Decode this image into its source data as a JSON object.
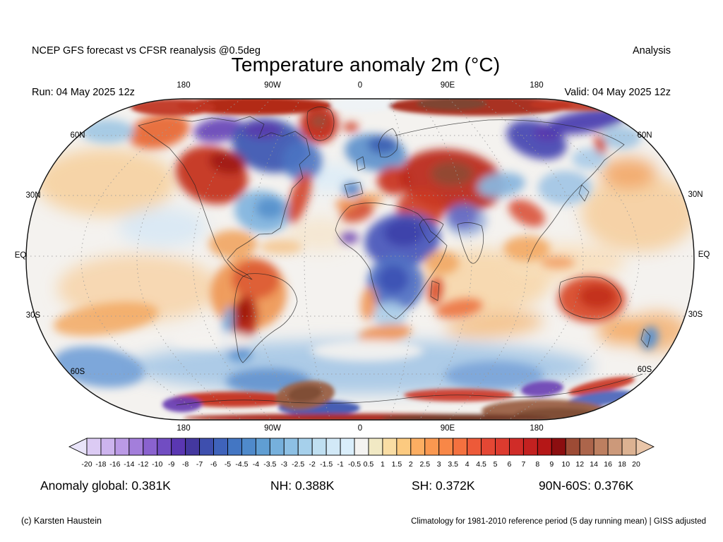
{
  "header": {
    "left_line1": "NCEP GFS forecast vs CFSR reanalysis @0.5deg",
    "left_line2": "Run: 04 May 2025 12z",
    "right_line1": "Analysis",
    "right_line2": "Valid: 04 May 2025 12z"
  },
  "title": "Temperature anomaly 2m (°C)",
  "map": {
    "lon_labels": [
      "180",
      "90W",
      "0",
      "90E",
      "180"
    ],
    "lat_labels": [
      "60N",
      "30N",
      "EQ",
      "30S",
      "60S"
    ],
    "outline_color": "#111111",
    "base_color": "#f4f2ef",
    "grid_color": "#9a9a9a",
    "coast_color": "#222222",
    "coastlines": [
      "M196,178 L236,168 L272,172 L300,167 L332,172 L354,165 L374,176 L366,196 L384,188 L400,193 L418,186 L434,197 L439,219 L424,233 L429,252 L414,267 L404,297 L397,323 L385,331 L367,332 L351,343 L335,353 L322,368 L335,381 L350,389 L357,396 L344,391 L330,383 L318,368 L306,345 L296,318 L286,290 L276,262 L260,234 L240,210 L216,193 Z",
      "M436,158 Q452,146 468,156 Q478,172 468,192 Q456,204 444,196 Q432,176 436,158 Z",
      "M352,388 Q374,386 394,394 Q418,404 421,427 Q416,449 397,463 Q377,475 362,492 Q352,506 344,514 Q337,507 336,491 Q330,461 332,431 Q334,403 344,392 Z",
      "M496,292 Q522,284 548,290 Q572,292 592,303 Q603,313 610,328 Q622,337 633,348 Q628,367 616,383 Q604,401 592,418 Q578,438 561,452 Q546,445 537,428 Q528,406 524,382 Q513,362 498,352 Q481,342 475,326 Q479,306 496,292 Z",
      "M488,262 L510,258 L514,274 L493,280 Z",
      "M505,227 L514,222 L517,238 L507,242 Z",
      "M536,206 Q540,188 556,182 Q566,192 562,212 Q551,226 539,222 Z",
      "M560,192 Q622,176 692,170 Q762,168 826,182 Q862,190 884,205 Q870,217 856,227 Q843,245 828,258 Q812,272 798,291 Q784,314 766,335 Q754,352 748,371",
      "M648,318 Q664,312 682,320 Q689,343 678,366 Q670,380 663,367 Q652,343 648,318 Z",
      "M598,312 Q614,307 628,318 Q621,334 608,344 Q598,331 594,318 Z",
      "M794,400 Q820,388 852,394 Q876,404 880,426 Q873,446 848,452 Q818,452 800,438 Q788,420 794,400 Z",
      "M912,466 L921,476 L917,492 L908,481 Z",
      "M824,262 L834,272 L828,285 L820,274 Z",
      "M612,398 L622,402 L620,426 L610,420 Z",
      "M250,574 Q330,562 410,570 Q490,574 560,566 Q630,556 700,562 Q770,566 840,550 Q880,541 910,530"
    ],
    "field_blobs": {
      "soft": [
        [
          150,
          258,
          100,
          48,
          0,
          "#f6d0a0",
          0.9
        ],
        [
          905,
          302,
          82,
          55,
          0,
          "#f6cc9a",
          0.85
        ],
        [
          196,
          408,
          115,
          48,
          0,
          "#f7d4a8",
          0.85
        ],
        [
          686,
          398,
          95,
          45,
          0,
          "#f7d6aa",
          0.9
        ],
        [
          800,
          372,
          85,
          26,
          0,
          "#f8ddb8",
          0.85
        ],
        [
          452,
          332,
          48,
          24,
          0,
          "#f8ddb8",
          0.5
        ],
        [
          468,
          252,
          42,
          20,
          0,
          "#dcecf7",
          0.9
        ],
        [
          230,
          322,
          62,
          28,
          0,
          "#d8e8f4",
          0.9
        ],
        [
          510,
          520,
          330,
          38,
          0,
          "#a6c8e6",
          0.92
        ],
        [
          930,
          470,
          45,
          28,
          0,
          "#f3b273",
          0.85
        ],
        [
          878,
          468,
          32,
          20,
          0,
          "#f3ab66",
          0.9
        ],
        [
          700,
          460,
          70,
          18,
          -5,
          "#f4ba7c",
          0.8
        ],
        [
          890,
          245,
          40,
          22,
          0,
          "#f2a360",
          0.85
        ]
      ],
      "mid": [
        [
          225,
          186,
          44,
          24,
          -12,
          "#e8713f",
          1
        ],
        [
          152,
          186,
          38,
          17,
          0,
          "#a2c8e4",
          0.95
        ],
        [
          310,
          184,
          36,
          17,
          -8,
          "#6a4ab8",
          0.95
        ],
        [
          382,
          206,
          54,
          38,
          12,
          "#3e59b2",
          0.95
        ],
        [
          372,
          184,
          28,
          13,
          0,
          "#5b3aac",
          0.9
        ],
        [
          428,
          228,
          28,
          28,
          0,
          "#4a74c2",
          0.9
        ],
        [
          300,
          248,
          52,
          40,
          18,
          "#c43320",
          0.95
        ],
        [
          322,
          230,
          26,
          16,
          10,
          "#a01a12",
          0.9
        ],
        [
          372,
          300,
          40,
          30,
          8,
          "#82b4de",
          0.95
        ],
        [
          382,
          295,
          20,
          15,
          0,
          "#5590cc",
          0.9
        ],
        [
          424,
          280,
          13,
          38,
          18,
          "#d2402a",
          0.9
        ],
        [
          330,
          346,
          34,
          20,
          0,
          "#f0a058",
          0.85
        ],
        [
          398,
          350,
          30,
          11,
          0,
          "#f5c38a",
          0.8
        ],
        [
          452,
          176,
          27,
          27,
          0,
          "#c63320",
          1
        ],
        [
          452,
          172,
          12,
          9,
          0,
          "#96503a",
          0.95
        ],
        [
          497,
          180,
          11,
          7,
          0,
          "#d04028",
          0.9
        ],
        [
          532,
          216,
          44,
          26,
          8,
          "#6194cc",
          0.95
        ],
        [
          542,
          205,
          21,
          13,
          0,
          "#3f63b4",
          0.95
        ],
        [
          558,
          256,
          24,
          20,
          0,
          "#c93722",
          0.95
        ],
        [
          498,
          268,
          13,
          10,
          0,
          "#5585c6",
          0.95
        ],
        [
          523,
          282,
          20,
          9,
          0,
          "#f09a55",
          0.8
        ],
        [
          640,
          256,
          75,
          44,
          8,
          "#bc2a1c",
          0.95
        ],
        [
          640,
          246,
          30,
          17,
          0,
          "#8e4a34",
          0.9
        ],
        [
          596,
          296,
          34,
          28,
          0,
          "#cc3a24",
          0.9
        ],
        [
          760,
          198,
          44,
          26,
          18,
          "#4a48b2",
          0.95
        ],
        [
          776,
          188,
          20,
          11,
          0,
          "#5b38ac",
          0.9
        ],
        [
          830,
          172,
          60,
          16,
          -10,
          "#4c3fb0",
          0.95
        ],
        [
          880,
          195,
          28,
          16,
          0,
          "#9cc2e2",
          0.85
        ],
        [
          835,
          225,
          25,
          15,
          0,
          "#a8cbe8",
          0.9
        ],
        [
          850,
          205,
          8,
          14,
          -15,
          "#d04830",
          0.9
        ],
        [
          710,
          262,
          34,
          17,
          -8,
          "#8ab6de",
          0.95
        ],
        [
          800,
          266,
          38,
          24,
          0,
          "#a0c4e4",
          0.9
        ],
        [
          746,
          302,
          28,
          16,
          28,
          "#d84830",
          0.85
        ],
        [
          655,
          306,
          21,
          17,
          0,
          "#5c3cb0",
          0.95
        ],
        [
          660,
          312,
          30,
          23,
          0,
          "#7090d0",
          0.6
        ],
        [
          746,
          352,
          33,
          18,
          0,
          "#f2a45c",
          0.85
        ],
        [
          790,
          372,
          24,
          9,
          0,
          "#f09050",
          0.7
        ],
        [
          506,
          300,
          24,
          14,
          -18,
          "#d44a2e",
          0.9
        ],
        [
          489,
          290,
          14,
          9,
          0,
          "#ef8c4a",
          0.85
        ],
        [
          570,
          340,
          54,
          38,
          -8,
          "#4b58ba",
          0.95
        ],
        [
          572,
          330,
          28,
          19,
          0,
          "#3c41aa",
          0.9
        ],
        [
          495,
          337,
          13,
          8,
          0,
          "#6b40b4",
          0.9
        ],
        [
          626,
          372,
          24,
          17,
          0,
          "#f0a058",
          0.8
        ],
        [
          560,
          402,
          40,
          40,
          0,
          "#5273c4",
          0.95
        ],
        [
          557,
          396,
          22,
          20,
          0,
          "#3c50b4",
          0.9
        ],
        [
          552,
          446,
          24,
          18,
          0,
          "#accee9",
          0.9
        ],
        [
          522,
          430,
          11,
          24,
          5,
          "#f0914e",
          0.85
        ],
        [
          617,
          412,
          10,
          20,
          8,
          "#d8502f",
          0.95
        ],
        [
          650,
          437,
          34,
          13,
          -10,
          "#ec7340",
          0.9
        ],
        [
          545,
          473,
          38,
          13,
          -8,
          "#ef8e4e",
          0.85
        ],
        [
          352,
          416,
          54,
          52,
          0,
          "#ee9350",
          0.9
        ],
        [
          362,
          396,
          34,
          28,
          0,
          "#dd5a33",
          0.9
        ],
        [
          346,
          452,
          19,
          34,
          8,
          "#b82a1a",
          0.95
        ],
        [
          345,
          442,
          11,
          18,
          5,
          "#a01811",
          0.9
        ],
        [
          322,
          466,
          8,
          33,
          6,
          "#78aada",
          0.95
        ],
        [
          340,
          502,
          17,
          11,
          0,
          "#6096d0",
          0.9
        ],
        [
          838,
          424,
          48,
          33,
          0,
          "#d84c2c",
          0.95
        ],
        [
          846,
          420,
          26,
          17,
          0,
          "#c23018",
          0.9
        ],
        [
          920,
          479,
          12,
          17,
          18,
          "#5b90cc",
          0.95
        ],
        [
          150,
          452,
          75,
          22,
          -8,
          "#f2a860",
          0.85
        ],
        [
          140,
          520,
          65,
          28,
          8,
          "#76a2d8",
          0.95
        ],
        [
          380,
          540,
          60,
          18,
          0,
          "#6292ce",
          0.9
        ],
        [
          700,
          532,
          70,
          20,
          0,
          "#7aa4d8",
          0.9
        ],
        [
          300,
          482,
          58,
          13,
          0,
          "#f6f3f0",
          0.9
        ],
        [
          520,
          497,
          80,
          15,
          0,
          "#f6f3f0",
          0.9
        ]
      ],
      "sharp": [
        [
          360,
          150,
          110,
          13,
          0,
          "#b22a18",
          1
        ],
        [
          515,
          148,
          45,
          11,
          0,
          "#eef2f6",
          0.95
        ],
        [
          680,
          150,
          130,
          14,
          0,
          "#a93220",
          1
        ],
        [
          640,
          147,
          50,
          9,
          0,
          "#7a4634",
          0.9
        ],
        [
          830,
          148,
          80,
          9,
          0,
          "#c23420",
          0.9
        ],
        [
          245,
          152,
          60,
          12,
          0,
          "#c03524",
          0.95
        ],
        [
          330,
          566,
          88,
          11,
          0,
          "#c43020",
          0.95
        ],
        [
          650,
          560,
          78,
          9,
          0,
          "#cc3522",
          0.9
        ],
        [
          852,
          547,
          48,
          9,
          -12,
          "#c8301f",
          0.9
        ],
        [
          258,
          573,
          28,
          11,
          0,
          "#6a3fb2",
          0.95
        ],
        [
          768,
          551,
          30,
          11,
          -5,
          "#6a3fb2",
          0.9
        ],
        [
          452,
          578,
          58,
          11,
          0,
          "#3c55b0",
          0.95
        ],
        [
          850,
          565,
          48,
          10,
          -8,
          "#4560b8",
          0.9
        ],
        [
          432,
          560,
          42,
          20,
          -8,
          "#9a6045",
          0.95
        ],
        [
          432,
          558,
          24,
          11,
          -8,
          "#7d4a34",
          0.9
        ],
        [
          770,
          582,
          88,
          16,
          0,
          "#9a6045",
          0.95
        ],
        [
          790,
          588,
          60,
          10,
          0,
          "#7d4a34",
          0.9
        ],
        [
          510,
          592,
          250,
          6,
          0,
          "#a82518",
          0.95
        ],
        [
          660,
          593,
          120,
          6,
          0,
          "#6b3a28",
          0.9
        ]
      ]
    }
  },
  "colorbar": {
    "ticks": [
      "-20",
      "-18",
      "-16",
      "-14",
      "-12",
      "-10",
      "-9",
      "-8",
      "-7",
      "-6",
      "-5",
      "-4.5",
      "-4",
      "-3.5",
      "-3",
      "-2.5",
      "-2",
      "-1.5",
      "-1",
      "-0.5",
      "0.5",
      "1",
      "1.5",
      "2",
      "2.5",
      "3",
      "3.5",
      "4",
      "4.5",
      "5",
      "6",
      "7",
      "8",
      "9",
      "10",
      "12",
      "14",
      "16",
      "18",
      "20"
    ],
    "arrow_left": "#e9e4f9",
    "arrow_right": "#e9c5a8",
    "cells": [
      "#dccbf4",
      "#cdb4ee",
      "#bb9ae6",
      "#a37edb",
      "#8a62cf",
      "#714dc2",
      "#5a37b2",
      "#44389f",
      "#3e4fae",
      "#3f63bb",
      "#4376c3",
      "#4f8acb",
      "#609ed3",
      "#76b0dc",
      "#8dc0e4",
      "#a6d0eb",
      "#bfdff1",
      "#d2e9f7",
      "#daeefb",
      "#f4f3f1",
      "#f1e9c4",
      "#f9dda4",
      "#fcca80",
      "#fcae62",
      "#fa9850",
      "#f88747",
      "#f4713f",
      "#ed5a39",
      "#e44734",
      "#dd3b2f",
      "#d02c28",
      "#c32120",
      "#b51717",
      "#8c0e10",
      "#9d4b35",
      "#ac654b",
      "#bd7f60",
      "#cc997a",
      "#dcb292"
    ]
  },
  "stats": {
    "global": "Anomaly global: 0.381K",
    "nh": "NH: 0.388K",
    "sh": "SH: 0.372K",
    "band": "90N-60S: 0.376K"
  },
  "footer": {
    "left": "(c) Karsten Haustein",
    "right": "Climatology for 1981-2010 reference period (5 day running mean) | GISS adjusted"
  },
  "chart_data": {
    "type": "heatmap",
    "title": "Temperature anomaly 2m (°C)",
    "projection": "robinson-world",
    "units": "°C",
    "colorbar_values": [
      -20,
      -18,
      -16,
      -14,
      -12,
      -10,
      -9,
      -8,
      -7,
      -6,
      -5,
      -4.5,
      -4,
      -3.5,
      -3,
      -2.5,
      -2,
      -1.5,
      -1,
      -0.5,
      0.5,
      1,
      1.5,
      2,
      2.5,
      3,
      3.5,
      4,
      4.5,
      5,
      6,
      7,
      8,
      9,
      10,
      12,
      14,
      16,
      18,
      20
    ],
    "lon_ticks": [
      "180",
      "90W",
      "0",
      "90E",
      "180"
    ],
    "lat_ticks": [
      "60N",
      "30N",
      "EQ",
      "30S",
      "60S"
    ],
    "stats": {
      "global_anomaly_K": 0.381,
      "nh_anomaly_K": 0.388,
      "sh_anomaly_K": 0.372,
      "band_90N_60S_anomaly_K": 0.376
    }
  }
}
